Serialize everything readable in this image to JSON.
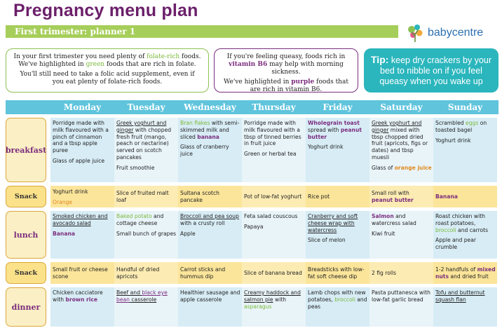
{
  "title": "Pregnancy menu plan",
  "subtitle": "First trimester: planner 1",
  "logo": {
    "icon": "babycentre-tree-icon",
    "text": "babycentre"
  },
  "intro": {
    "line1_pre": "In your first trimester you need plenty of ",
    "line1_hl": "folate-rich",
    "line1_post": " foods.",
    "line2_pre": "We've highlighted in ",
    "line2_hl": "green",
    "line2_post": " foods that are rich in folate.",
    "line3": "You'll still need to take a folic acid supplement, even if you eat plenty of folate-rich foods."
  },
  "vitb6": {
    "line1_pre": "If you're feeling queasy, foods rich in ",
    "line1_hl": "vitamin B6",
    "line1_post": " may help with morning sickness.",
    "line2_pre": "We've highlighted in ",
    "line2_hl": "purple",
    "line2_post": " foods that are rich in vitamin B6."
  },
  "tip": {
    "label": "Tip:",
    "text": "keep dry crackers by your bed to nibble on if you feel queasy  when you wake up"
  },
  "days": [
    "Monday",
    "Tuesday",
    "Wednesday",
    "Thursday",
    "Friday",
    "Saturday",
    "Sunday"
  ],
  "rows": [
    {
      "label": "breakfast",
      "type": "main",
      "cells": [
        [
          [
            [
              "t",
              "Porridge made with milk flavoured with a pinch of cinnamon and a tbsp apple puree"
            ]
          ],
          [
            [
              "t",
              "Glass of apple juice"
            ]
          ]
        ],
        [
          [
            [
              "u",
              "Greek yoghurt and ginger"
            ],
            [
              "t",
              " with chopped fresh fruit (mango, peach or nectarine) served on scotch pancakes"
            ]
          ],
          [
            [
              "t",
              "Fruit smoothie"
            ]
          ]
        ],
        [
          [
            [
              "g",
              "Bran flakes"
            ],
            [
              "t",
              " with semi-skimmed milk and sliced "
            ],
            [
              "p",
              "banana"
            ]
          ],
          [
            [
              "t",
              "Glass of cranberry juice"
            ]
          ]
        ],
        [
          [
            [
              "t",
              "Porridge made with milk flavoured with a tbsp of tinned berries in fruit juice"
            ]
          ],
          [
            [
              "t",
              "Green or herbal tea"
            ]
          ]
        ],
        [
          [
            [
              "p",
              "Wholegrain toast"
            ],
            [
              "t",
              " spread with "
            ],
            [
              "p",
              "peanut butter"
            ]
          ],
          [
            [
              "t",
              "Yoghurt drink"
            ]
          ]
        ],
        [
          [
            [
              "u",
              "Greek yoghurt and ginger"
            ],
            [
              "t",
              " mixed with tbsp chopped dried fruit (apricots, figs or dates) and tbsp muesli"
            ]
          ],
          [
            [
              "t",
              "Glass of "
            ],
            [
              "bo",
              "orange juice"
            ]
          ]
        ],
        [
          [
            [
              "t",
              "Scrambled "
            ],
            [
              "g",
              "eggs"
            ],
            [
              "t",
              " on toasted bagel"
            ]
          ],
          [
            [
              "t",
              "Yoghurt drink"
            ]
          ]
        ]
      ]
    },
    {
      "label": "Snack",
      "type": "snack",
      "cells": [
        [
          [
            [
              "t",
              "Yoghurt drink"
            ]
          ],
          [
            [
              "o",
              "Orange"
            ]
          ]
        ],
        [
          [
            [
              "t",
              "Slice of fruited malt loaf"
            ]
          ]
        ],
        [
          [
            [
              "t",
              "Sultana scotch pancake"
            ]
          ]
        ],
        [
          [
            [
              "t",
              "Pot of low-fat yoghurt"
            ]
          ]
        ],
        [
          [
            [
              "t",
              "Rice pot"
            ]
          ]
        ],
        [
          [
            [
              "t",
              "Small roll with "
            ],
            [
              "p",
              "peanut butter"
            ]
          ]
        ],
        [
          [
            [
              "p",
              "Banana"
            ]
          ]
        ]
      ]
    },
    {
      "label": "lunch",
      "type": "main",
      "cells": [
        [
          [
            [
              "u",
              "Smoked chicken and avocado salad"
            ]
          ],
          [
            [
              "p",
              "Banana"
            ]
          ]
        ],
        [
          [
            [
              "g",
              "Baked potato"
            ],
            [
              "t",
              " and cottage cheese"
            ]
          ],
          [
            [
              "t",
              "Small bunch of grapes"
            ]
          ]
        ],
        [
          [
            [
              "u",
              "Broccoli and pea soup"
            ],
            [
              "t",
              " with a crusty roll"
            ]
          ],
          [
            [
              "t",
              "Apple"
            ]
          ]
        ],
        [
          [
            [
              "t",
              "Feta salad couscous"
            ]
          ],
          [
            [
              "t",
              "Papaya"
            ]
          ]
        ],
        [
          [
            [
              "u",
              "Cranberry and soft cheese wrap with watercress"
            ]
          ],
          [
            [
              "t",
              "Slice of melon"
            ]
          ]
        ],
        [
          [
            [
              "p",
              "Salmon"
            ],
            [
              "t",
              " and watercress salad"
            ]
          ],
          [
            [
              "t",
              "Kiwi fruit"
            ]
          ]
        ],
        [
          [
            [
              "t",
              "Roast chicken with roast potatoes, "
            ],
            [
              "g",
              "broccoli"
            ],
            [
              "t",
              " and carrots"
            ]
          ],
          [
            [
              "t",
              "Apple and pear crumble"
            ]
          ]
        ]
      ]
    },
    {
      "label": "Snack",
      "type": "snack",
      "cells": [
        [
          [
            [
              "t",
              "Small fruit or cheese scone"
            ]
          ]
        ],
        [
          [
            [
              "t",
              "Handful of dried apricots"
            ]
          ]
        ],
        [
          [
            [
              "t",
              "Carrot sticks and hummus dip"
            ]
          ]
        ],
        [
          [
            [
              "t",
              "Slice of banana bread"
            ]
          ]
        ],
        [
          [
            [
              "t",
              "Breadsticks with low-fat soft cheese dip"
            ]
          ]
        ],
        [
          [
            [
              "t",
              "2 fig rolls"
            ]
          ]
        ],
        [
          [
            [
              "t",
              "1-2 handfuls of "
            ],
            [
              "p",
              "mixed nuts"
            ],
            [
              "t",
              " and dried fruit"
            ]
          ]
        ]
      ]
    },
    {
      "label": "dinner",
      "type": "main",
      "cells": [
        [
          [
            [
              "t",
              "Chicken cacciatore with "
            ],
            [
              "p",
              "brown rice"
            ]
          ]
        ],
        [
          [
            [
              "u",
              "Beef and "
            ],
            [
              "up",
              "black eye bean"
            ],
            [
              "u",
              " casserole"
            ]
          ]
        ],
        [
          [
            [
              "t",
              "Healthier sausage and apple casserole"
            ]
          ]
        ],
        [
          [
            [
              "u",
              "Creamy haddock and salmon pie"
            ],
            [
              "t",
              " with "
            ],
            [
              "g",
              "asparagus"
            ]
          ]
        ],
        [
          [
            [
              "t",
              "Lamb chops with new potatoes, "
            ],
            [
              "g",
              "broccoli"
            ],
            [
              "t",
              " and peas"
            ]
          ]
        ],
        [
          [
            [
              "t",
              "Pasta puttanesca with low-fat garlic bread"
            ]
          ]
        ],
        [
          [
            [
              "u",
              "Tofu and butternut squash flan"
            ]
          ]
        ]
      ]
    }
  ]
}
